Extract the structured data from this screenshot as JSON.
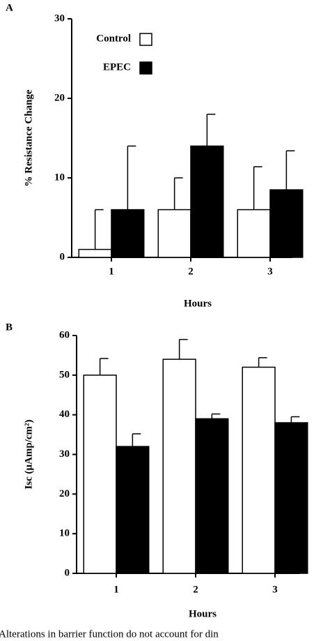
{
  "chart_data": [
    {
      "type": "bar",
      "panel_label": "A",
      "ylabel": "% Resistance Change",
      "xlabel": "Hours",
      "categories": [
        "1",
        "2",
        "3"
      ],
      "series": [
        {
          "name": "Control",
          "color": "#ffffff",
          "values": [
            1,
            6,
            6
          ],
          "errors": [
            5,
            4,
            5.4
          ]
        },
        {
          "name": "EPEC",
          "color": "#000000",
          "values": [
            6,
            14,
            8.5
          ],
          "errors": [
            8,
            4,
            4.9
          ]
        }
      ],
      "ylim": [
        0,
        30
      ],
      "yticks": [
        0,
        10,
        20,
        30
      ],
      "legend": true
    },
    {
      "type": "bar",
      "panel_label": "B",
      "ylabel": "Isc  (μAmp/cm²)",
      "xlabel": "Hours",
      "categories": [
        "1",
        "2",
        "3"
      ],
      "series": [
        {
          "name": "Control",
          "color": "#ffffff",
          "values": [
            50,
            54,
            52
          ],
          "errors": [
            4.2,
            5,
            2.4
          ]
        },
        {
          "name": "EPEC",
          "color": "#000000",
          "values": [
            32,
            39,
            38
          ],
          "errors": [
            3.2,
            1.2,
            1.5
          ]
        }
      ],
      "ylim": [
        0,
        60
      ],
      "yticks": [
        0,
        10,
        20,
        30,
        40,
        50,
        60
      ],
      "legend": false
    }
  ],
  "caption": "Alterations in barrier function do not account for din"
}
